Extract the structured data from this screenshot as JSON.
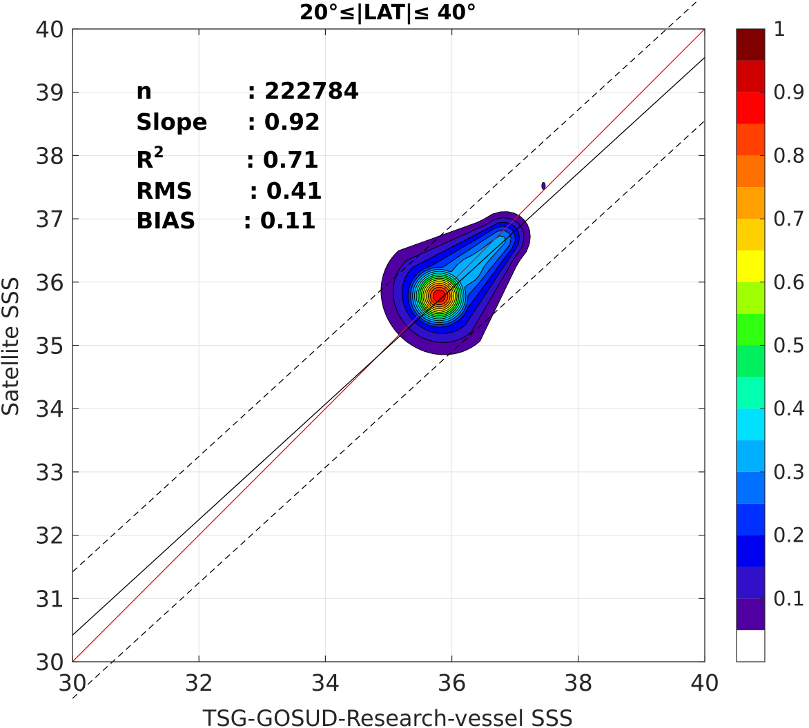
{
  "chart_data": {
    "type": "contour",
    "title": "20°≤|LAT|≤ 40°",
    "xlabel": "TSG-GOSUD-Research-vessel SSS",
    "ylabel": "Satellite SSS",
    "xlim": [
      30,
      40
    ],
    "ylim": [
      30,
      40
    ],
    "xticks": [
      "30",
      "32",
      "34",
      "36",
      "38",
      "40"
    ],
    "yticks": [
      "30",
      "31",
      "32",
      "33",
      "34",
      "35",
      "36",
      "37",
      "38",
      "39",
      "40"
    ],
    "grid": true,
    "stats": [
      {
        "label": "n",
        "sep": ":",
        "value": "222784"
      },
      {
        "label": "Slope",
        "sep": ":",
        "value": "0.92"
      },
      {
        "label": "R",
        "sup": "2",
        "sep": ":",
        "value": "0.71"
      },
      {
        "label": "RMS",
        "sep": ":",
        "value": "0.41"
      },
      {
        "label": "BIAS",
        "sep": ":",
        "value": "0.11"
      }
    ],
    "lines": [
      {
        "role": "one-to-one",
        "color": "#ff0000",
        "dash": "solid",
        "x": [
          30,
          40
        ],
        "y": [
          30,
          40
        ]
      },
      {
        "role": "regression",
        "color": "#000000",
        "dash": "solid",
        "x": [
          30,
          40
        ],
        "y": [
          30.42,
          39.55
        ]
      },
      {
        "role": "upper-bound",
        "color": "#000000",
        "dash": "dashed",
        "x": [
          30,
          40
        ],
        "y": [
          31.42,
          40.55
        ]
      },
      {
        "role": "lower-bound",
        "color": "#000000",
        "dash": "dashed",
        "x": [
          30,
          40
        ],
        "y": [
          29.42,
          38.55
        ]
      }
    ],
    "density": {
      "peak_x": 35.8,
      "peak_y": 35.78,
      "secondary_peak_x": 36.27,
      "secondary_peak_y": 36.18,
      "max_level": 0.95,
      "outlier_x": 37.45,
      "outlier_y": 37.52
    },
    "colorbar": {
      "levels": [
        0.05,
        0.1,
        0.15,
        0.2,
        0.25,
        0.3,
        0.35,
        0.4,
        0.45,
        0.5,
        0.55,
        0.6,
        0.65,
        0.7,
        0.75,
        0.8,
        0.85,
        0.9,
        0.95,
        1.0
      ],
      "colors": [
        "#ffffff",
        "#5000a0",
        "#3010c8",
        "#0000f0",
        "#0030ff",
        "#0070ff",
        "#00b0ff",
        "#00e0ff",
        "#00ffb0",
        "#00f060",
        "#30ff10",
        "#a0ff00",
        "#ffff00",
        "#ffd000",
        "#ffa000",
        "#ff7000",
        "#ff4000",
        "#ff0000",
        "#d00000",
        "#800000"
      ],
      "tick_labels": [
        "0.1",
        "0.2",
        "0.3",
        "0.4",
        "0.5",
        "0.6",
        "0.7",
        "0.8",
        "0.9",
        "1"
      ],
      "tick_values": [
        0.1,
        0.2,
        0.3,
        0.4,
        0.5,
        0.6,
        0.7,
        0.8,
        0.9,
        1.0
      ],
      "min": 0.0,
      "max": 1.0
    }
  }
}
